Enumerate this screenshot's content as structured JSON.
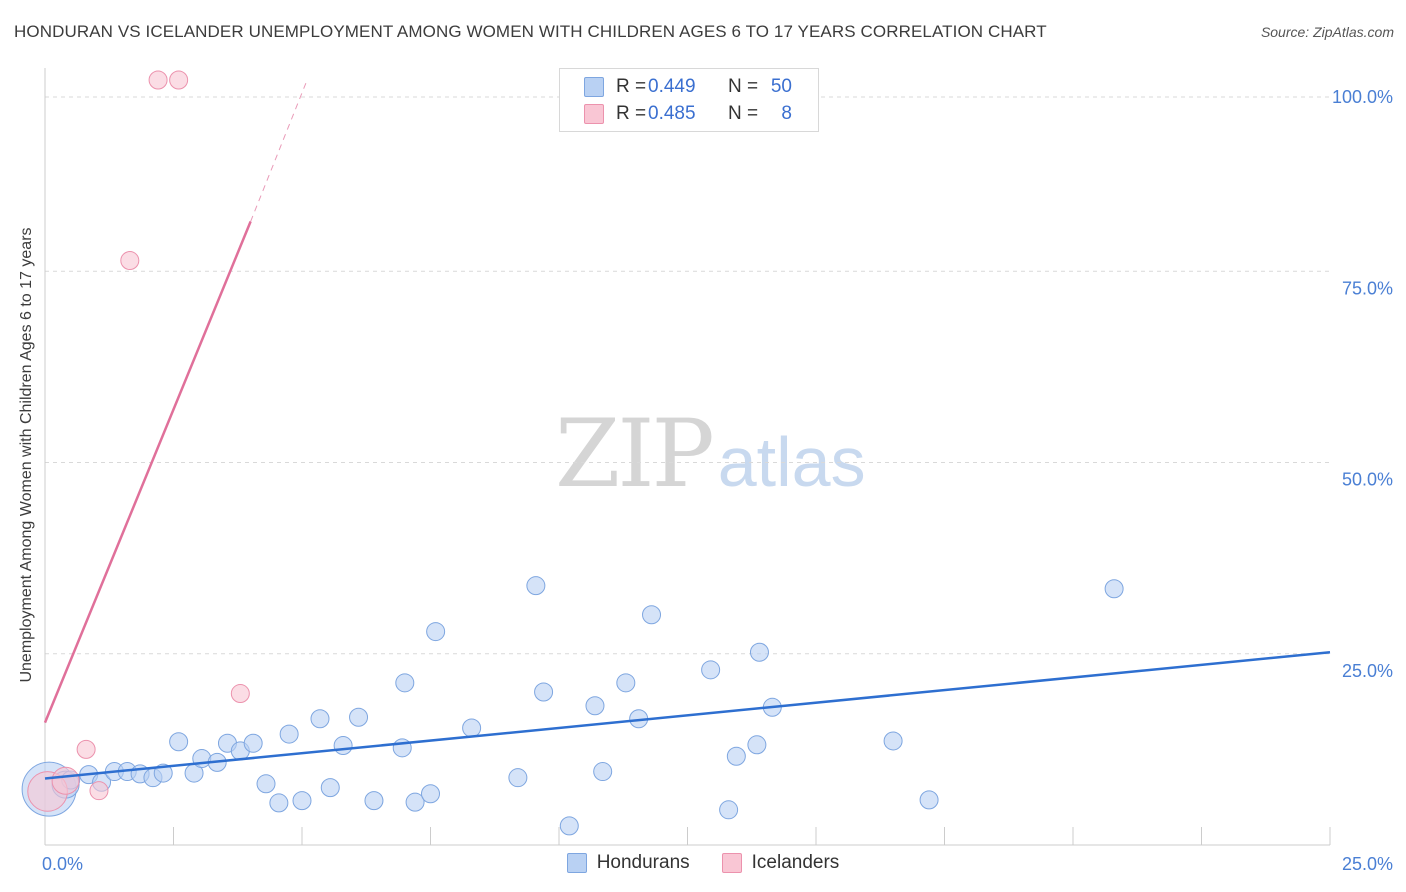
{
  "title": "HONDURAN VS ICELANDER UNEMPLOYMENT AMONG WOMEN WITH CHILDREN AGES 6 TO 17 YEARS CORRELATION CHART",
  "source": "Source: ZipAtlas.com",
  "watermark": {
    "zip": "ZIP",
    "atlas": "atlas"
  },
  "colors": {
    "blue_fill": "#b9d1f3",
    "blue_stroke": "#7ea6e0",
    "blue_line": "#2e6fd0",
    "pink_fill": "#f9c6d4",
    "pink_stroke": "#ec92ad",
    "pink_line": "#e0709a",
    "grid": "#d9d9d9",
    "axis_text": "#4a7fd4"
  },
  "legend_top": {
    "rows": [
      {
        "series": "Hondurans",
        "r_label": "R =",
        "r_value": "0.449",
        "n_label": "N =",
        "n_value": "50"
      },
      {
        "series": "Icelanders",
        "r_label": "R =",
        "r_value": "0.485",
        "n_label": "N =",
        "n_value": "8"
      }
    ]
  },
  "chart_data": {
    "type": "scatter",
    "title": "HONDURAN VS ICELANDER UNEMPLOYMENT AMONG WOMEN WITH CHILDREN AGES 6 TO 17 YEARS CORRELATION CHART",
    "xlabel": "",
    "ylabel": "Unemployment Among Women with Children Ages 6 to 17 years",
    "xlim": [
      0,
      25
    ],
    "ylim": [
      0,
      100
    ],
    "x_ticks": [
      0,
      25
    ],
    "x_tick_labels": [
      "0.0%",
      "25.0%"
    ],
    "y_ticks": [
      25,
      50,
      75,
      100
    ],
    "y_tick_labels": [
      "25.0%",
      "50.0%",
      "75.0%",
      "100.0%"
    ],
    "grid": true,
    "legend": [
      "Hondurans",
      "Icelanders"
    ],
    "series": [
      {
        "name": "Hondurans",
        "color": "blue",
        "points": [
          [
            0.08,
            7.3,
            3
          ],
          [
            0.4,
            7.9,
            1.5
          ],
          [
            0.5,
            8.5,
            1
          ],
          [
            0.85,
            9.2,
            1
          ],
          [
            1.1,
            8.2,
            1
          ],
          [
            1.35,
            9.6,
            1
          ],
          [
            1.6,
            9.6,
            1
          ],
          [
            1.85,
            9.3,
            1
          ],
          [
            2.1,
            8.8,
            1
          ],
          [
            2.3,
            9.4,
            1
          ],
          [
            2.6,
            13.5,
            1
          ],
          [
            2.9,
            9.4,
            1
          ],
          [
            3.05,
            11.3,
            1
          ],
          [
            3.35,
            10.8,
            1
          ],
          [
            3.55,
            13.3,
            1
          ],
          [
            3.8,
            12.3,
            1
          ],
          [
            4.05,
            13.3,
            1
          ],
          [
            4.3,
            8.0,
            1
          ],
          [
            4.55,
            5.5,
            1
          ],
          [
            4.75,
            14.5,
            1
          ],
          [
            5.0,
            5.8,
            1
          ],
          [
            5.35,
            16.5,
            1
          ],
          [
            5.55,
            7.5,
            1
          ],
          [
            5.8,
            13.0,
            1
          ],
          [
            6.1,
            16.7,
            1
          ],
          [
            6.4,
            5.8,
            1
          ],
          [
            6.95,
            12.7,
            1
          ],
          [
            7.0,
            21.2,
            1
          ],
          [
            7.2,
            5.6,
            1
          ],
          [
            7.5,
            6.7,
            1
          ],
          [
            7.6,
            27.9,
            1
          ],
          [
            8.3,
            15.3,
            1
          ],
          [
            9.2,
            8.8,
            1
          ],
          [
            9.55,
            33.9,
            1
          ],
          [
            9.7,
            20.0,
            1
          ],
          [
            10.2,
            2.5,
            1
          ],
          [
            10.7,
            18.2,
            1
          ],
          [
            10.85,
            9.6,
            1
          ],
          [
            11.3,
            21.2,
            1
          ],
          [
            11.55,
            16.5,
            1
          ],
          [
            11.8,
            30.1,
            1
          ],
          [
            12.95,
            22.9,
            1
          ],
          [
            13.3,
            4.6,
            1
          ],
          [
            13.45,
            11.6,
            1
          ],
          [
            13.85,
            13.1,
            1
          ],
          [
            13.9,
            25.2,
            1
          ],
          [
            14.15,
            18.0,
            1
          ],
          [
            16.5,
            13.6,
            1
          ],
          [
            17.2,
            5.9,
            1
          ],
          [
            20.8,
            33.5,
            1
          ]
        ],
        "trend": {
          "x": [
            0,
            25
          ],
          "y": [
            8.7,
            25.2
          ]
        }
      },
      {
        "name": "Icelanders",
        "color": "pink",
        "points": [
          [
            0.05,
            7.0,
            2.2
          ],
          [
            0.4,
            8.4,
            1.5
          ],
          [
            0.8,
            12.5,
            1
          ],
          [
            1.05,
            7.1,
            1
          ],
          [
            1.65,
            76.4,
            1
          ],
          [
            2.2,
            100.0,
            1
          ],
          [
            2.6,
            100.0,
            1
          ],
          [
            3.8,
            19.8,
            1
          ]
        ],
        "trend": {
          "x": [
            0,
            4.0
          ],
          "y": [
            16.0,
            81.5
          ],
          "extension": {
            "x": [
              4.0,
              5.1
            ],
            "y": [
              81.5,
              100.0
            ]
          }
        }
      }
    ]
  }
}
